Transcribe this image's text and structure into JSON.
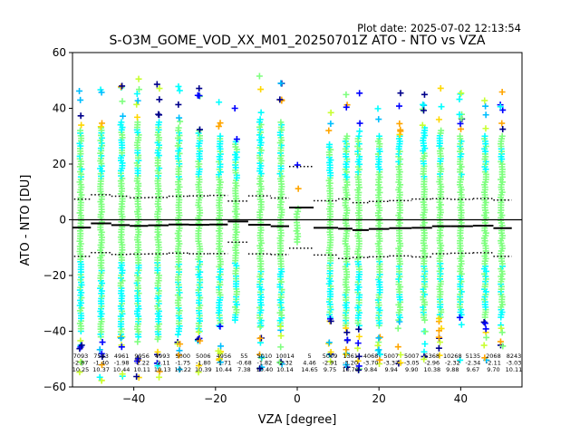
{
  "figure": {
    "date_label": "Plot date: 2025-07-02 12:13:54"
  },
  "chart_data": {
    "type": "scatter",
    "title": "S-O3M_GOME_VOD_XX_M01_20250701Z ATO - NTO vs VZA",
    "xlabel": "VZA [degree]",
    "ylabel": "ATO - NTO [DU]",
    "xlim": [
      -55,
      55
    ],
    "ylim": [
      -60,
      60
    ],
    "xticks": [
      -40,
      -20,
      0,
      20,
      40
    ],
    "yticks": [
      -60,
      -40,
      -20,
      0,
      20,
      40,
      60
    ],
    "grid": false,
    "legend": "none",
    "reference_line_y": 0,
    "colormap": [
      "#00008b",
      "#0000ff",
      "#00bfff",
      "#00ffff",
      "#7fff7f",
      "#c8ff32",
      "#ffd700",
      "#ffa500"
    ],
    "series": [
      {
        "x": -53,
        "y_min": -40,
        "y_max": 32,
        "count": 7093,
        "mean": -2.87,
        "median": -2.8,
        "std": 10.25
      },
      {
        "x": -48,
        "y_min": -42,
        "y_max": 33,
        "count": 7583,
        "mean": -1.4,
        "median": -1.3,
        "std": 10.37
      },
      {
        "x": -43,
        "y_min": -42,
        "y_max": 35,
        "count": 4961,
        "mean": -1.98,
        "median": -1.9,
        "std": 10.44
      },
      {
        "x": -39,
        "y_min": -42,
        "y_max": 35,
        "count": 9956,
        "mean": -2.22,
        "median": -2.2,
        "std": 10.11
      },
      {
        "x": -34,
        "y_min": -42,
        "y_max": 35,
        "count": 4993,
        "mean": -2.11,
        "median": -2.0,
        "std": 10.13
      },
      {
        "x": -29,
        "y_min": -40,
        "y_max": 33,
        "count": 5000,
        "mean": -1.75,
        "median": -1.7,
        "std": 10.22
      },
      {
        "x": -24,
        "y_min": -40,
        "y_max": 32,
        "count": 5006,
        "mean": -1.8,
        "median": -1.8,
        "std": 10.39
      },
      {
        "x": -19,
        "y_min": -38,
        "y_max": 30,
        "count": 4956,
        "mean": -1.71,
        "median": -1.7,
        "std": 10.44
      },
      {
        "x": -15,
        "y_min": -36,
        "y_max": 28,
        "count": 55,
        "mean": -0.68,
        "median": -0.6,
        "std": 7.38
      },
      {
        "x": -9,
        "y_min": -38,
        "y_max": 36,
        "count": 5010,
        "mean": -1.82,
        "median": -1.8,
        "std": 10.4
      },
      {
        "x": -4,
        "y_min": -38,
        "y_max": 35,
        "count": 10014,
        "mean": -2.32,
        "median": -2.3,
        "std": 10.14
      },
      {
        "x": 0,
        "y_min": -8,
        "y_max": 4,
        "count": 5,
        "mean": 4.46,
        "median": 4.4,
        "std": 14.65
      },
      {
        "x": 8,
        "y_min": -35,
        "y_max": 27,
        "count": 5009,
        "mean": -2.91,
        "median": -2.9,
        "std": 9.75
      },
      {
        "x": 12,
        "y_min": -38,
        "y_max": 30,
        "count": 1361,
        "mean": -3.2,
        "median": -3.2,
        "std": 10.7
      },
      {
        "x": 15,
        "y_min": -38,
        "y_max": 30,
        "count": 4068,
        "mean": -3.7,
        "median": -3.7,
        "std": 9.84
      },
      {
        "x": 20,
        "y_min": -38,
        "y_max": 30,
        "count": 5007,
        "mean": -3.37,
        "median": -3.3,
        "std": 9.94
      },
      {
        "x": 25,
        "y_min": -36,
        "y_max": 30,
        "count": 5007,
        "mean": -3.05,
        "median": -3.0,
        "std": 9.9
      },
      {
        "x": 31,
        "y_min": -36,
        "y_max": 33,
        "count": 5368,
        "mean": -2.96,
        "median": -2.9,
        "std": 10.38
      },
      {
        "x": 35,
        "y_min": -35,
        "y_max": 32,
        "count": 10268,
        "mean": -2.32,
        "median": -2.3,
        "std": 9.88
      },
      {
        "x": 40,
        "y_min": -35,
        "y_max": 30,
        "count": 5135,
        "mean": -2.34,
        "median": -2.3,
        "std": 9.67
      },
      {
        "x": 46,
        "y_min": -35,
        "y_max": 30,
        "count": 2068,
        "mean": -2.11,
        "median": -2.1,
        "std": 9.7
      },
      {
        "x": 50,
        "y_min": -35,
        "y_max": 30,
        "count": 8243,
        "mean": -3.03,
        "median": -3.0,
        "std": 10.11
      }
    ],
    "stat_labels": [
      {
        "x": -53,
        "lines": [
          "7093",
          "-2.87",
          "10.25"
        ]
      },
      {
        "x": -48,
        "lines": [
          "7583",
          "-1.40",
          "10.37"
        ]
      },
      {
        "x": -43,
        "lines": [
          "4961",
          "-1.98",
          "10.44"
        ]
      },
      {
        "x": -38,
        "lines": [
          "9956",
          "-2.22",
          "10.11"
        ]
      },
      {
        "x": -33,
        "lines": [
          "4993",
          "-2.11",
          "10.13"
        ]
      },
      {
        "x": -28,
        "lines": [
          "5000",
          "-1.75",
          "10.22"
        ]
      },
      {
        "x": -23,
        "lines": [
          "5006",
          "-1.80",
          "10.39"
        ]
      },
      {
        "x": -18,
        "lines": [
          "4956",
          "-1.71",
          "10.44"
        ]
      },
      {
        "x": -13,
        "lines": [
          "55",
          "-0.68",
          "7.38"
        ]
      },
      {
        "x": -8,
        "lines": [
          "5010",
          "-1.82",
          "10.40"
        ]
      },
      {
        "x": -3,
        "lines": [
          "10014",
          "-2.32",
          "10.14"
        ]
      },
      {
        "x": 3,
        "lines": [
          "5",
          "4.46",
          "14.65"
        ]
      },
      {
        "x": 8,
        "lines": [
          "5009",
          "-2.91",
          "9.75"
        ]
      },
      {
        "x": 13,
        "lines": [
          "1361",
          "-3.20",
          "10.70"
        ]
      },
      {
        "x": 18,
        "lines": [
          "4068",
          "-3.70",
          "9.84"
        ]
      },
      {
        "x": 23,
        "lines": [
          "5007",
          "-3.37",
          "9.94"
        ]
      },
      {
        "x": 28,
        "lines": [
          "5007",
          "-3.05",
          "9.90"
        ]
      },
      {
        "x": 33,
        "lines": [
          "5368",
          "-2.96",
          "10.38"
        ]
      },
      {
        "x": 38,
        "lines": [
          "10268",
          "-2.32",
          "9.88"
        ]
      },
      {
        "x": 43,
        "lines": [
          "5135",
          "-2.34",
          "9.67"
        ]
      },
      {
        "x": 48,
        "lines": [
          "2068",
          "-2.11",
          "9.70"
        ]
      },
      {
        "x": 53,
        "lines": [
          "8243",
          "-3.03",
          "10.11"
        ]
      }
    ]
  }
}
